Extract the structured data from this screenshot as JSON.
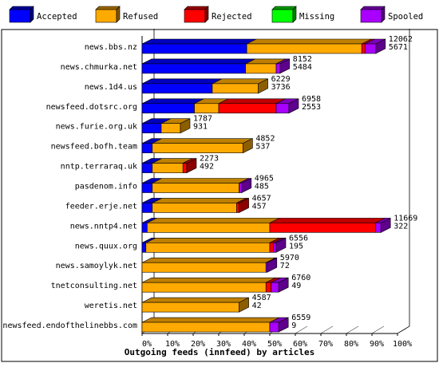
{
  "chart_data": {
    "type": "bar",
    "orientation": "horizontal",
    "stacked": true,
    "title": "",
    "xlabel": "Outgoing feeds (innfeed) by articles",
    "ylabel": "",
    "xlim": [
      0,
      100
    ],
    "x_ticks": [
      "0%",
      "10%",
      "20%",
      "30%",
      "40%",
      "50%",
      "60%",
      "70%",
      "80%",
      "90%",
      "100%"
    ],
    "legend_position": "top",
    "grid": false,
    "series": [
      {
        "name": "Accepted",
        "color": "#0000ff"
      },
      {
        "name": "Refused",
        "color": "#ffaa00"
      },
      {
        "name": "Rejected",
        "color": "#ff0000"
      },
      {
        "name": "Missing",
        "color": "#00ff00"
      },
      {
        "name": "Spooled",
        "color": "#aa00ff"
      }
    ],
    "categories": [
      "news.bbs.nz",
      "news.chmurka.net",
      "news.1d4.us",
      "newsfeed.dotsrc.org",
      "news.furie.org.uk",
      "newsfeed.bofh.team",
      "nntp.terraraq.uk",
      "pasdenom.info",
      "feeder.erje.net",
      "news.nntp4.net",
      "news.quux.org",
      "news.samoylyk.net",
      "tnetconsulting.net",
      "weretis.net",
      "newsfeed.endofthelinebbs.com"
    ],
    "bars": [
      {
        "accepted": 12062,
        "refused": 16100,
        "rejected": 180,
        "missing": 0,
        "spooled": 1340,
        "label_top": "12062",
        "label_bottom": "5671"
      },
      {
        "accepted": 8152,
        "refused": 6480,
        "rejected": 0,
        "missing": 0,
        "spooled": 1350,
        "label_top": "8152",
        "label_bottom": "5484"
      },
      {
        "accepted": 6229,
        "refused": 3950,
        "rejected": 0,
        "missing": 0,
        "spooled": 890,
        "label_top": "6229",
        "label_bottom": "3736"
      },
      {
        "accepted": 6958,
        "refused": 2760,
        "rejected": 7900,
        "missing": 0,
        "spooled": 900,
        "label_top": "6958",
        "label_bottom": "2553"
      },
      {
        "accepted": 1787,
        "refused": 1370,
        "rejected": 0,
        "missing": 0,
        "spooled": 1070,
        "label_top": "1787",
        "label_bottom": "931"
      },
      {
        "accepted": 4852,
        "refused": 1700,
        "rejected": 0,
        "missing": 0,
        "spooled": 0,
        "label_top": "4852",
        "label_bottom": "537"
      },
      {
        "accepted": 2273,
        "refused": 493,
        "rejected": 28,
        "missing": 0,
        "spooled": 0,
        "label_top": "2273",
        "label_bottom": "492"
      },
      {
        "accepted": 4965,
        "refused": 1770,
        "rejected": 0,
        "missing": 0,
        "spooled": 115,
        "label_top": "4965",
        "label_bottom": "485"
      },
      {
        "accepted": 4657,
        "refused": 1700,
        "rejected": 70,
        "missing": 0,
        "spooled": 0,
        "label_top": "4657",
        "label_bottom": "457"
      },
      {
        "accepted": 11669,
        "refused": 1040,
        "rejected": 550,
        "missing": 0,
        "spooled": 55,
        "label_top": "11669",
        "label_bottom": "322"
      },
      {
        "accepted": 6556,
        "refused": 1950,
        "rejected": 29,
        "missing": 0,
        "spooled": 85,
        "label_top": "6556",
        "label_bottom": "195"
      },
      {
        "accepted": 5970,
        "refused": 135,
        "rejected": 0,
        "missing": 0,
        "spooled": 3,
        "label_top": "5970",
        "label_bottom": "72"
      },
      {
        "accepted": 6760,
        "refused": 47,
        "rejected": 5,
        "missing": 0,
        "spooled": 7,
        "label_top": "6760",
        "label_bottom": "49"
      },
      {
        "accepted": 4587,
        "refused": 38,
        "rejected": 0,
        "missing": 0,
        "spooled": 0,
        "label_top": "4587",
        "label_bottom": "42"
      },
      {
        "accepted": 6559,
        "refused": 140,
        "rejected": 0,
        "missing": 0,
        "spooled": 10,
        "label_top": "6559",
        "label_bottom": "9"
      }
    ],
    "segments_percent": [
      [
        {
          "s": "Accepted",
          "v": 41
        },
        {
          "s": "Refused",
          "v": 45
        },
        {
          "s": "Rejected",
          "v": 1.3
        },
        {
          "s": "Spooled",
          "v": 4.2
        }
      ],
      [
        {
          "s": "Accepted",
          "v": 40.5
        },
        {
          "s": "Refused",
          "v": 12
        },
        {
          "s": "Spooled",
          "v": 1.5
        }
      ],
      [
        {
          "s": "Accepted",
          "v": 27.5
        },
        {
          "s": "Refused",
          "v": 18
        }
      ],
      [
        {
          "s": "Accepted",
          "v": 20.5
        },
        {
          "s": "Refused",
          "v": 9.5
        },
        {
          "s": "Rejected",
          "v": 22.5
        },
        {
          "s": "Spooled",
          "v": 5
        }
      ],
      [
        {
          "s": "Accepted",
          "v": 7.5
        },
        {
          "s": "Refused",
          "v": 7.5
        }
      ],
      [
        {
          "s": "Accepted",
          "v": 4
        },
        {
          "s": "Refused",
          "v": 35.5
        }
      ],
      [
        {
          "s": "Accepted",
          "v": 4
        },
        {
          "s": "Refused",
          "v": 12
        },
        {
          "s": "Rejected",
          "v": 1.5
        }
      ],
      [
        {
          "s": "Accepted",
          "v": 4
        },
        {
          "s": "Refused",
          "v": 34
        },
        {
          "s": "Spooled",
          "v": 1
        }
      ],
      [
        {
          "s": "Accepted",
          "v": 4
        },
        {
          "s": "Refused",
          "v": 33
        },
        {
          "s": "Rejected",
          "v": 1
        }
      ],
      [
        {
          "s": "Accepted",
          "v": 2
        },
        {
          "s": "Refused",
          "v": 48
        },
        {
          "s": "Rejected",
          "v": 41.5
        },
        {
          "s": "Spooled",
          "v": 2
        }
      ],
      [
        {
          "s": "Accepted",
          "v": 1.5
        },
        {
          "s": "Refused",
          "v": 48.5
        },
        {
          "s": "Rejected",
          "v": 1.5
        },
        {
          "s": "Spooled",
          "v": 1
        }
      ],
      [
        {
          "s": "Refused",
          "v": 48.5
        },
        {
          "s": "Spooled",
          "v": 0.5
        }
      ],
      [
        {
          "s": "Refused",
          "v": 48.5
        },
        {
          "s": "Rejected",
          "v": 2
        },
        {
          "s": "Spooled",
          "v": 3
        }
      ],
      [
        {
          "s": "Refused",
          "v": 38
        }
      ],
      [
        {
          "s": "Refused",
          "v": 50
        },
        {
          "s": "Spooled",
          "v": 3.5
        }
      ]
    ]
  }
}
